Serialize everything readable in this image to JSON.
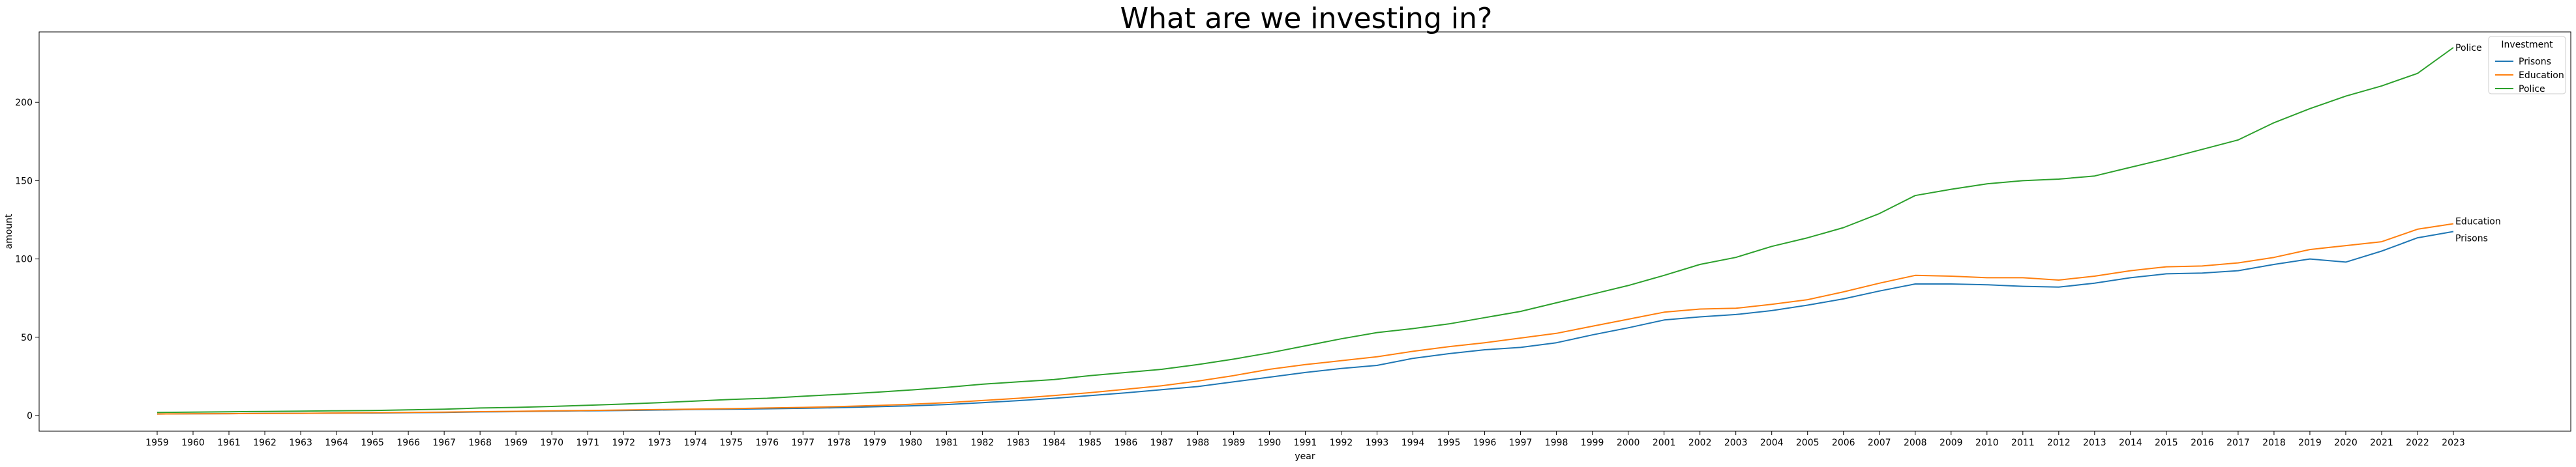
{
  "chart_data": {
    "type": "line",
    "title": "What are we investing in?",
    "xlabel": "year",
    "ylabel": "amount",
    "ylim": [
      -10,
      245
    ],
    "yticks": [
      0,
      50,
      100,
      150,
      200
    ],
    "grid": false,
    "legend": {
      "title": "Investment",
      "placement": "top-right"
    },
    "x": [
      1959,
      1960,
      1961,
      1962,
      1963,
      1964,
      1965,
      1966,
      1967,
      1968,
      1969,
      1970,
      1971,
      1972,
      1973,
      1974,
      1975,
      1976,
      1977,
      1978,
      1979,
      1980,
      1981,
      1982,
      1983,
      1984,
      1985,
      1986,
      1987,
      1988,
      1989,
      1990,
      1991,
      1992,
      1993,
      1994,
      1995,
      1996,
      1997,
      1998,
      1999,
      2000,
      2001,
      2002,
      2003,
      2004,
      2005,
      2006,
      2007,
      2008,
      2009,
      2010,
      2011,
      2012,
      2013,
      2014,
      2015,
      2016,
      2017,
      2018,
      2019,
      2020,
      2021,
      2022,
      2023
    ],
    "series": [
      {
        "name": "Prisons",
        "color": "#1f77b4",
        "values": [
          1.0,
          1.1,
          1.2,
          1.3,
          1.4,
          1.5,
          1.6,
          1.8,
          2.0,
          2.3,
          2.5,
          2.8,
          3.0,
          3.2,
          3.5,
          3.8,
          4.0,
          4.3,
          4.6,
          5.0,
          5.6,
          6.2,
          7.0,
          8.2,
          9.5,
          11.0,
          12.7,
          14.5,
          16.5,
          18.5,
          21.5,
          24.5,
          27.5,
          30.0,
          32.0,
          36.5,
          39.5,
          42.0,
          43.5,
          46.5,
          51.5,
          56.0,
          61.0,
          63.0,
          64.5,
          67.0,
          70.5,
          74.5,
          79.5,
          84.0,
          84.0,
          83.5,
          82.5,
          82.0,
          84.5,
          88.0,
          90.5,
          91.0,
          92.5,
          96.5,
          100.0,
          98.0,
          105.0,
          113.5,
          117.5
        ]
      },
      {
        "name": "Education",
        "color": "#ff7f0e",
        "values": [
          1.0,
          1.1,
          1.2,
          1.3,
          1.4,
          1.6,
          1.8,
          2.0,
          2.2,
          2.5,
          2.7,
          3.0,
          3.2,
          3.5,
          3.8,
          4.1,
          4.4,
          4.8,
          5.2,
          5.7,
          6.4,
          7.2,
          8.2,
          9.6,
          11.0,
          12.8,
          14.6,
          16.8,
          19.0,
          22.0,
          25.5,
          29.5,
          32.5,
          35.0,
          37.5,
          41.0,
          44.0,
          46.5,
          49.5,
          52.5,
          57.0,
          61.5,
          66.0,
          68.0,
          68.5,
          71.0,
          74.0,
          79.0,
          84.5,
          89.5,
          89.0,
          88.0,
          88.0,
          86.5,
          89.0,
          92.5,
          95.0,
          95.5,
          97.5,
          101.0,
          106.0,
          108.5,
          111.0,
          119.0,
          122.5
        ]
      },
      {
        "name": "Police",
        "color": "#2ca02c",
        "values": [
          2.0,
          2.2,
          2.4,
          2.6,
          2.8,
          3.0,
          3.2,
          3.6,
          4.0,
          4.8,
          5.2,
          5.8,
          6.5,
          7.3,
          8.2,
          9.2,
          10.3,
          11.0,
          12.3,
          13.5,
          14.8,
          16.3,
          18.0,
          20.0,
          21.5,
          23.0,
          25.5,
          27.5,
          29.5,
          32.5,
          36.0,
          40.0,
          44.5,
          49.0,
          53.0,
          55.5,
          58.5,
          62.5,
          66.5,
          72.0,
          77.5,
          83.0,
          89.5,
          96.5,
          101.0,
          108.0,
          113.5,
          120.0,
          129.0,
          140.5,
          144.5,
          148.0,
          150.0,
          151.0,
          153.0,
          158.5,
          164.0,
          170.0,
          176.0,
          187.0,
          196.0,
          204.0,
          210.5,
          218.5,
          235.0
        ]
      }
    ]
  }
}
